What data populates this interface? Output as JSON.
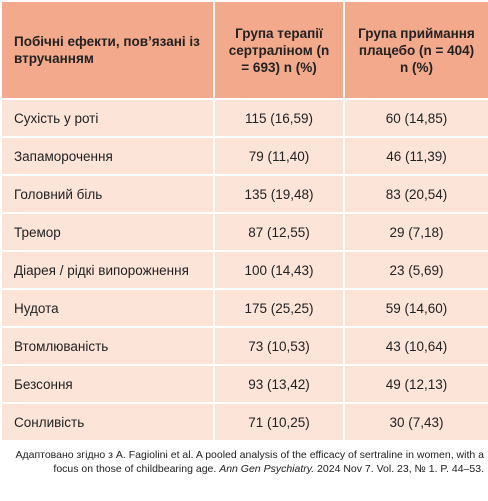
{
  "table": {
    "header": [
      "Побічні ефекти, пов’язані із втручанням",
      "Група терапії сертраліном (n = 693) n (%)",
      "Група приймання плацебо (n = 404) n (%)"
    ],
    "rows": [
      [
        "Сухість у роті",
        "115 (16,59)",
        "60 (14,85)"
      ],
      [
        "Запаморочення",
        "79 (11,40)",
        "46 (11,39)"
      ],
      [
        "Головний біль",
        "135 (19,48)",
        "83 (20,54)"
      ],
      [
        "Тремор",
        "87 (12,55)",
        "29 (7,18)"
      ],
      [
        "Діарея / рідкі випорожнення",
        "100 (14,43)",
        "23 (5,69)"
      ],
      [
        "Нудота",
        "175 (25,25)",
        "59 (14,60)"
      ],
      [
        "Втомлюваність",
        "73 (10,53)",
        "43 (10,64)"
      ],
      [
        "Безсоння",
        "93 (13,42)",
        "49 (12,13)"
      ],
      [
        "Сонливість",
        "71 (10,25)",
        "30 (7,43)"
      ]
    ]
  },
  "footnote": {
    "text_before": "Адаптовано згідно з A. Fagiolini et al. A pooled analysis of the efficacy of sertraline in women, with a focus on those of childbearing age. ",
    "journal": "Ann Gen Psychiatry.",
    "text_after": " 2024 Nov 7. Vol. 23, № 1. P. 44–53."
  }
}
